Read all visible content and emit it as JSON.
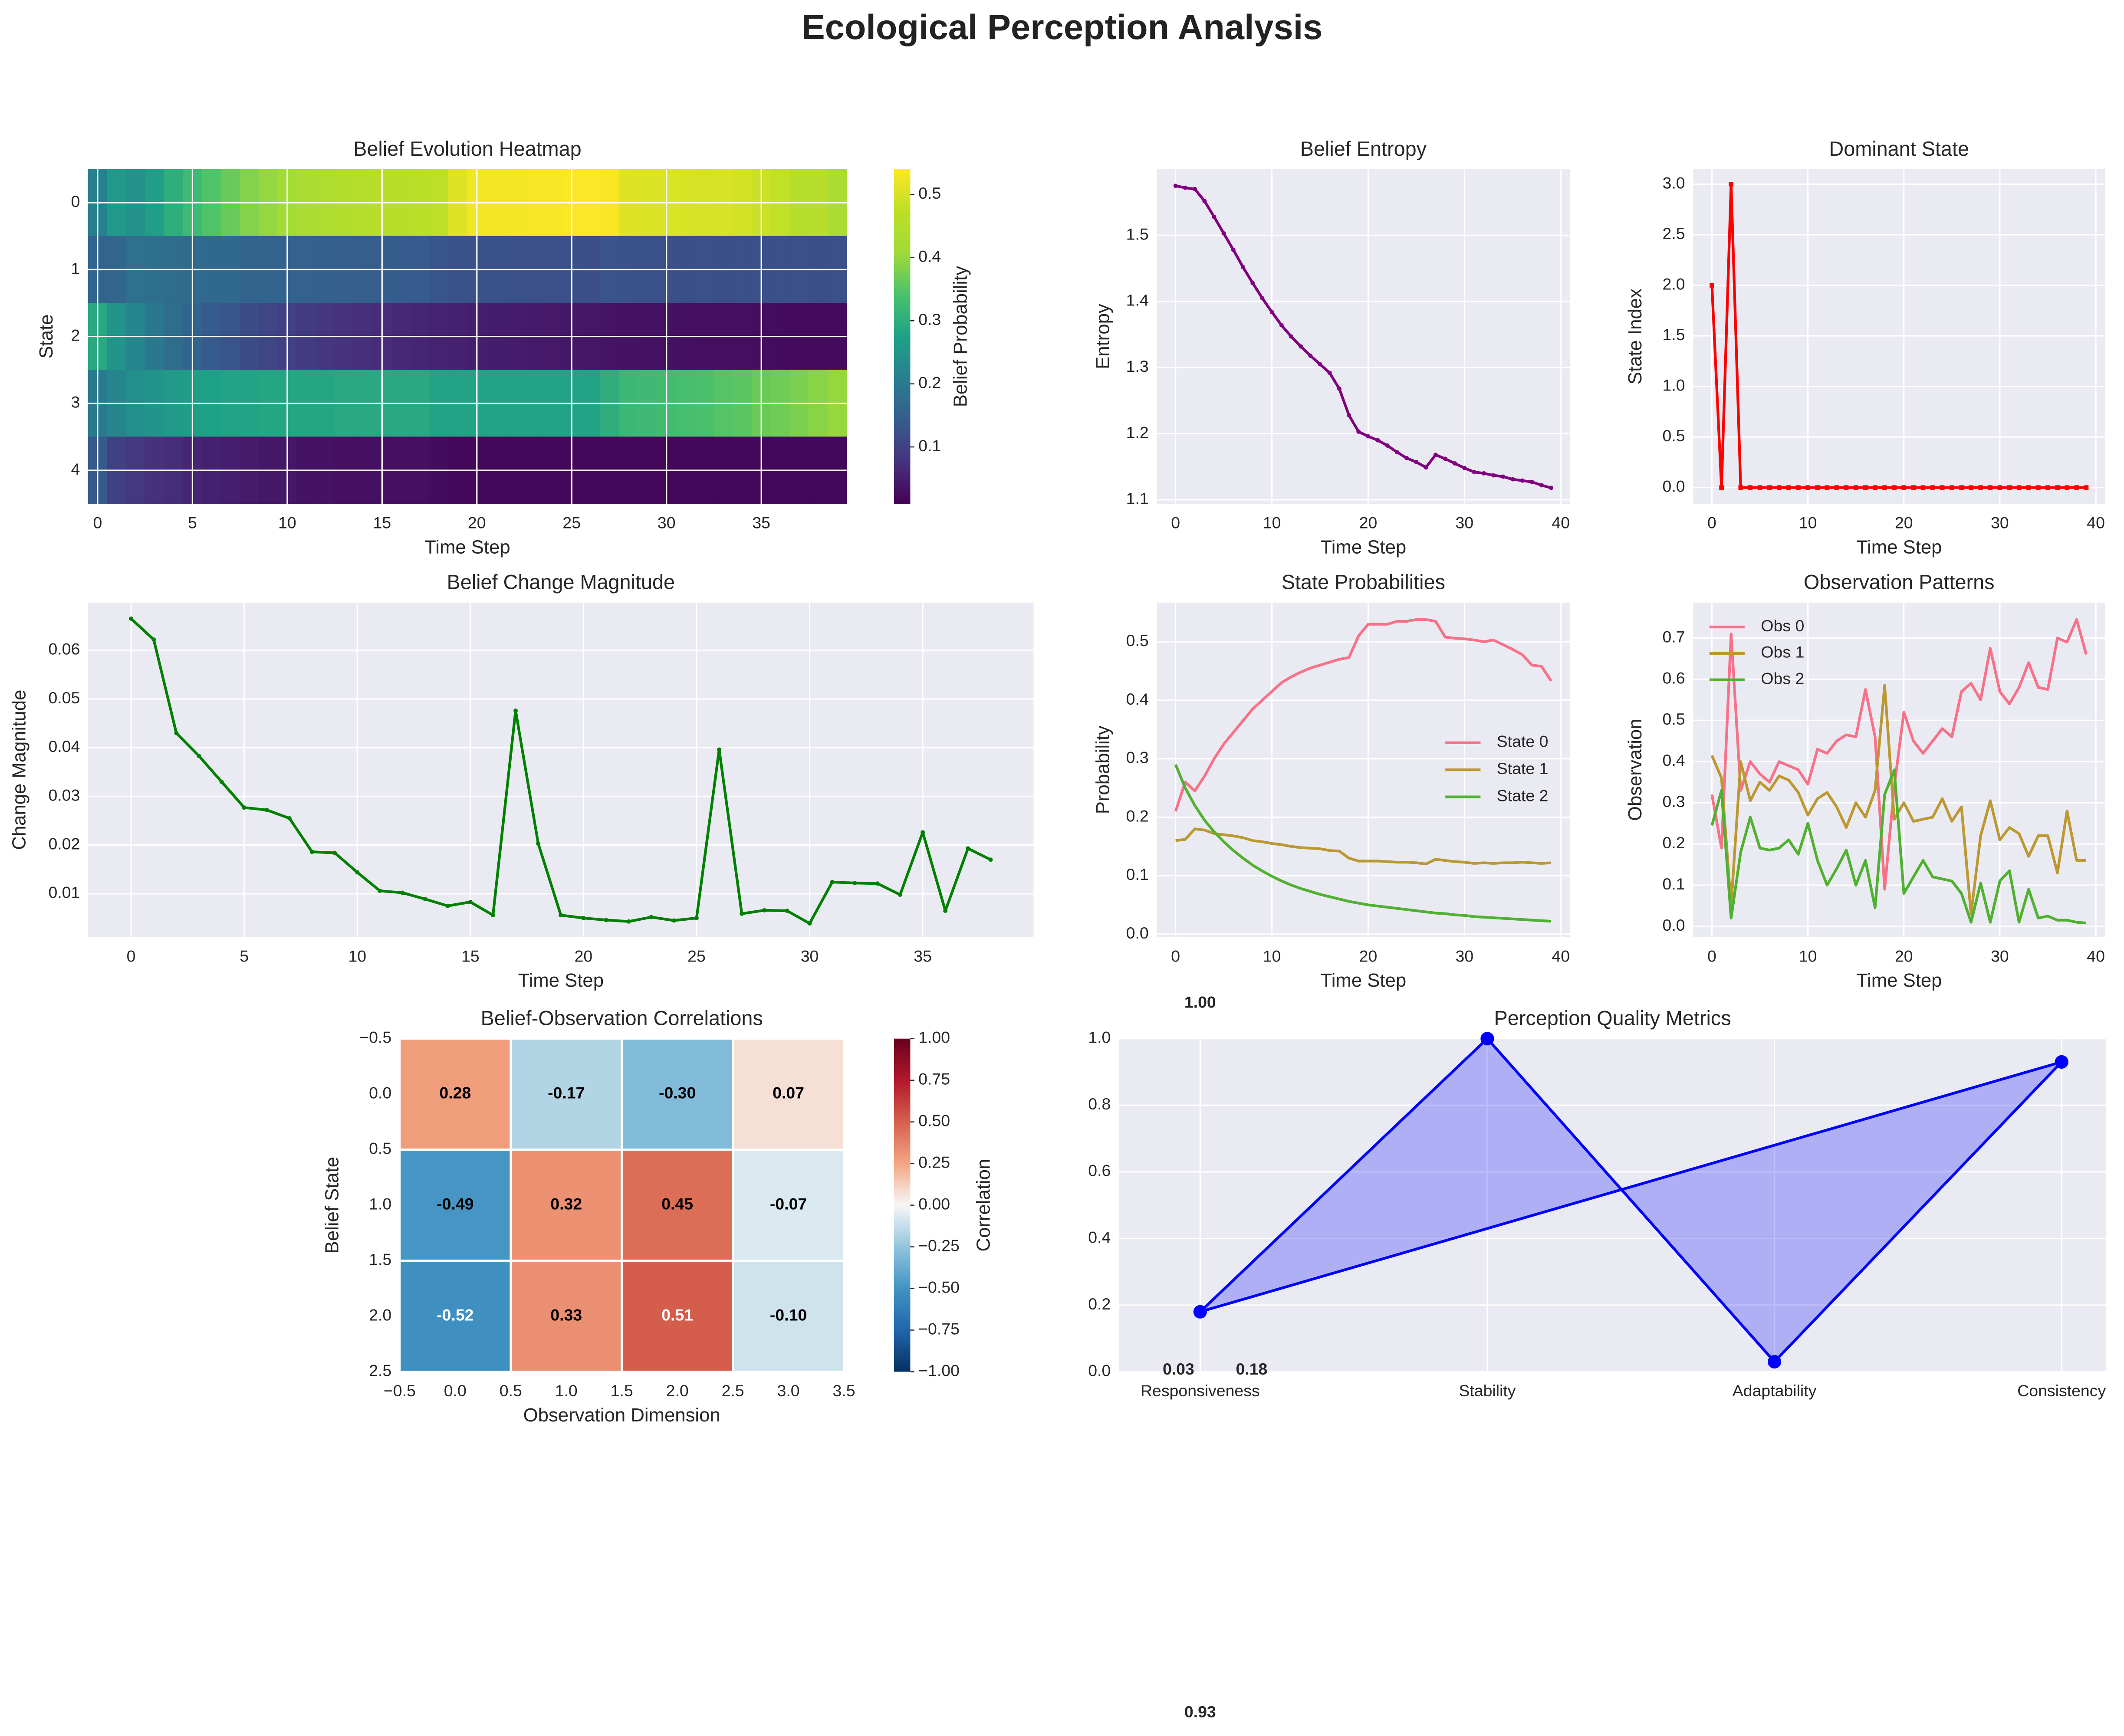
{
  "title": "Ecological Perception Analysis",
  "chart_data": [
    {
      "type": "heatmap",
      "title": "Belief Evolution Heatmap",
      "xlabel": "Time Step",
      "ylabel": "State",
      "colormap": "viridis",
      "clim": [
        0.01,
        0.54
      ],
      "cticks": [
        0.1,
        0.2,
        0.3,
        0.4,
        0.5
      ],
      "colorbar_label": "Belief Probability",
      "xlim": [
        -0.5,
        39.5
      ],
      "ylim": [
        4.5,
        -0.5
      ],
      "xticks": [
        0,
        5,
        10,
        15,
        20,
        25,
        30,
        35
      ],
      "yticks": [
        0,
        1,
        2,
        3,
        4
      ],
      "grid": true,
      "z": [
        [
          0.21,
          0.26,
          0.245,
          0.27,
          0.3,
          0.325,
          0.345,
          0.365,
          0.385,
          0.4,
          0.415,
          0.43,
          0.44,
          0.448,
          0.455,
          0.46,
          0.465,
          0.47,
          0.473,
          0.51,
          0.53,
          0.53,
          0.53,
          0.535,
          0.535,
          0.538,
          0.538,
          0.535,
          0.508,
          0.506,
          0.505,
          0.503,
          0.5,
          0.503,
          0.495,
          0.487,
          0.478,
          0.46,
          0.458,
          0.433
        ],
        [
          0.16,
          0.162,
          0.18,
          0.178,
          0.172,
          0.17,
          0.168,
          0.165,
          0.16,
          0.158,
          0.155,
          0.153,
          0.15,
          0.148,
          0.147,
          0.146,
          0.143,
          0.142,
          0.13,
          0.125,
          0.125,
          0.125,
          0.124,
          0.123,
          0.123,
          0.122,
          0.12,
          0.128,
          0.126,
          0.124,
          0.123,
          0.121,
          0.122,
          0.121,
          0.122,
          0.122,
          0.123,
          0.122,
          0.121,
          0.122
        ],
        [
          0.29,
          0.25,
          0.22,
          0.195,
          0.175,
          0.158,
          0.143,
          0.13,
          0.118,
          0.108,
          0.099,
          0.091,
          0.084,
          0.078,
          0.073,
          0.068,
          0.064,
          0.06,
          0.056,
          0.053,
          0.05,
          0.048,
          0.046,
          0.044,
          0.042,
          0.04,
          0.038,
          0.036,
          0.035,
          0.033,
          0.032,
          0.03,
          0.029,
          0.028,
          0.027,
          0.026,
          0.025,
          0.024,
          0.023,
          0.022
        ],
        [
          0.2,
          0.22,
          0.24,
          0.25,
          0.26,
          0.27,
          0.275,
          0.28,
          0.28,
          0.285,
          0.285,
          0.285,
          0.285,
          0.29,
          0.29,
          0.29,
          0.29,
          0.29,
          0.28,
          0.28,
          0.28,
          0.28,
          0.28,
          0.28,
          0.28,
          0.28,
          0.28,
          0.3,
          0.32,
          0.325,
          0.33,
          0.335,
          0.34,
          0.35,
          0.355,
          0.365,
          0.37,
          0.38,
          0.39,
          0.4
        ],
        [
          0.14,
          0.1,
          0.085,
          0.075,
          0.07,
          0.06,
          0.055,
          0.05,
          0.045,
          0.04,
          0.04,
          0.035,
          0.035,
          0.03,
          0.03,
          0.03,
          0.03,
          0.03,
          0.025,
          0.02,
          0.02,
          0.02,
          0.02,
          0.02,
          0.02,
          0.02,
          0.02,
          0.02,
          0.02,
          0.02,
          0.02,
          0.02,
          0.02,
          0.02,
          0.02,
          0.02,
          0.02,
          0.02,
          0.02,
          0.02
        ]
      ]
    },
    {
      "type": "line",
      "title": "Belief Entropy",
      "xlabel": "Time Step",
      "ylabel": "Entropy",
      "color": "#800080",
      "marker": "o",
      "grid": true,
      "xlim": [
        -1.95,
        40.95
      ],
      "ylim": [
        1.094,
        1.6
      ],
      "xticks": [
        0,
        10,
        20,
        30,
        40
      ],
      "yticks": [
        1.1,
        1.2,
        1.3,
        1.4,
        1.5
      ],
      "x": [
        0,
        1,
        2,
        3,
        4,
        5,
        6,
        7,
        8,
        9,
        10,
        11,
        12,
        13,
        14,
        15,
        16,
        17,
        18,
        19,
        20,
        21,
        22,
        23,
        24,
        25,
        26,
        27,
        28,
        29,
        30,
        31,
        32,
        33,
        34,
        35,
        36,
        37,
        38,
        39
      ],
      "values": [
        1.575,
        1.572,
        1.57,
        1.552,
        1.528,
        1.503,
        1.478,
        1.452,
        1.428,
        1.405,
        1.384,
        1.364,
        1.347,
        1.332,
        1.318,
        1.305,
        1.292,
        1.268,
        1.228,
        1.203,
        1.196,
        1.19,
        1.182,
        1.172,
        1.163,
        1.157,
        1.149,
        1.168,
        1.162,
        1.155,
        1.148,
        1.142,
        1.14,
        1.137,
        1.135,
        1.131,
        1.129,
        1.127,
        1.122,
        1.118
      ]
    },
    {
      "type": "line",
      "title": "Dominant State",
      "xlabel": "Time Step",
      "ylabel": "State Index",
      "color": "#ff0000",
      "marker": "s",
      "grid": true,
      "xlim": [
        -1.95,
        40.95
      ],
      "ylim": [
        -0.16,
        3.147
      ],
      "xticks": [
        0,
        10,
        20,
        30,
        40
      ],
      "yticks": [
        {
          "value": 0,
          "label": "0.0"
        },
        0.5,
        {
          "value": 1,
          "label": "1.0"
        },
        1.5,
        {
          "value": 2,
          "label": "2.0"
        },
        2.5,
        {
          "value": 3,
          "label": "3.0"
        }
      ],
      "x": [
        0,
        1,
        2,
        3,
        4,
        5,
        6,
        7,
        8,
        9,
        10,
        11,
        12,
        13,
        14,
        15,
        16,
        17,
        18,
        19,
        20,
        21,
        22,
        23,
        24,
        25,
        26,
        27,
        28,
        29,
        30,
        31,
        32,
        33,
        34,
        35,
        36,
        37,
        38,
        39
      ],
      "values": [
        2,
        0,
        3,
        0,
        0,
        0,
        0,
        0,
        0,
        0,
        0,
        0,
        0,
        0,
        0,
        0,
        0,
        0,
        0,
        0,
        0,
        0,
        0,
        0,
        0,
        0,
        0,
        0,
        0,
        0,
        0,
        0,
        0,
        0,
        0,
        0,
        0,
        0,
        0,
        0
      ]
    },
    {
      "type": "line",
      "title": "Belief Change Magnitude",
      "xlabel": "Time Step",
      "ylabel": "Change Magnitude",
      "color": "#008000",
      "marker": "o",
      "grid": true,
      "xlim": [
        -1.9,
        39.9
      ],
      "ylim": [
        0.0011,
        0.0698
      ],
      "xticks": [
        0,
        5,
        10,
        15,
        20,
        25,
        30,
        35
      ],
      "yticks": [
        0.01,
        0.02,
        0.03,
        0.04,
        0.05,
        0.06
      ],
      "x": [
        0,
        1,
        2,
        3,
        4,
        5,
        6,
        7,
        8,
        9,
        10,
        11,
        12,
        13,
        14,
        15,
        16,
        17,
        18,
        19,
        20,
        21,
        22,
        23,
        24,
        25,
        26,
        27,
        28,
        29,
        30,
        31,
        32,
        33,
        34,
        35,
        36,
        37,
        38
      ],
      "values": [
        0.0665,
        0.0622,
        0.043,
        0.0383,
        0.033,
        0.0277,
        0.0272,
        0.0255,
        0.0186,
        0.0184,
        0.0144,
        0.0106,
        0.0102,
        0.0089,
        0.0075,
        0.0083,
        0.0056,
        0.0476,
        0.0203,
        0.0056,
        0.005,
        0.0046,
        0.0043,
        0.0052,
        0.0045,
        0.005,
        0.0396,
        0.0059,
        0.0066,
        0.0065,
        0.0039,
        0.0124,
        0.0122,
        0.0121,
        0.0098,
        0.0226,
        0.0065,
        0.0193,
        0.017
      ]
    },
    {
      "type": "line",
      "title": "State Probabilities",
      "xlabel": "Time Step",
      "ylabel": "Probability",
      "grid": true,
      "legend": "center right",
      "xlim": [
        -1.95,
        40.95
      ],
      "ylim": [
        -0.005,
        0.567
      ],
      "xticks": [
        0,
        10,
        20,
        30,
        40
      ],
      "yticks": [
        {
          "value": 0,
          "label": "0.0"
        },
        0.1,
        0.2,
        0.3,
        0.4,
        0.5
      ],
      "x": [
        0,
        1,
        2,
        3,
        4,
        5,
        6,
        7,
        8,
        9,
        10,
        11,
        12,
        13,
        14,
        15,
        16,
        17,
        18,
        19,
        20,
        21,
        22,
        23,
        24,
        25,
        26,
        27,
        28,
        29,
        30,
        31,
        32,
        33,
        34,
        35,
        36,
        37,
        38,
        39
      ],
      "series": [
        {
          "name": "State 0",
          "color": "#f77189",
          "values": [
            0.21,
            0.26,
            0.245,
            0.27,
            0.3,
            0.325,
            0.345,
            0.365,
            0.385,
            0.4,
            0.415,
            0.43,
            0.44,
            0.448,
            0.455,
            0.46,
            0.465,
            0.47,
            0.473,
            0.51,
            0.53,
            0.53,
            0.53,
            0.535,
            0.535,
            0.538,
            0.538,
            0.535,
            0.508,
            0.506,
            0.505,
            0.503,
            0.5,
            0.503,
            0.495,
            0.487,
            0.478,
            0.46,
            0.458,
            0.433
          ]
        },
        {
          "name": "State 1",
          "color": "#bb9832",
          "values": [
            0.16,
            0.162,
            0.18,
            0.178,
            0.172,
            0.17,
            0.168,
            0.165,
            0.16,
            0.158,
            0.155,
            0.153,
            0.15,
            0.148,
            0.147,
            0.146,
            0.143,
            0.142,
            0.13,
            0.125,
            0.125,
            0.125,
            0.124,
            0.123,
            0.123,
            0.122,
            0.12,
            0.128,
            0.126,
            0.124,
            0.123,
            0.121,
            0.122,
            0.121,
            0.122,
            0.122,
            0.123,
            0.122,
            0.121,
            0.122
          ]
        },
        {
          "name": "State 2",
          "color": "#50b131",
          "values": [
            0.29,
            0.25,
            0.22,
            0.195,
            0.175,
            0.158,
            0.143,
            0.13,
            0.118,
            0.108,
            0.099,
            0.091,
            0.084,
            0.078,
            0.073,
            0.068,
            0.064,
            0.06,
            0.056,
            0.053,
            0.05,
            0.048,
            0.046,
            0.044,
            0.042,
            0.04,
            0.038,
            0.036,
            0.035,
            0.033,
            0.032,
            0.03,
            0.029,
            0.028,
            0.027,
            0.026,
            0.025,
            0.024,
            0.023,
            0.022
          ]
        }
      ]
    },
    {
      "type": "line",
      "title": "Observation Patterns",
      "xlabel": "Time Step",
      "ylabel": "Observation",
      "grid": true,
      "legend": "upper left",
      "xlim": [
        -1.95,
        40.95
      ],
      "ylim": [
        -0.026,
        0.786
      ],
      "xticks": [
        0,
        10,
        20,
        30,
        40
      ],
      "yticks": [
        {
          "value": 0,
          "label": "0.0"
        },
        0.1,
        0.2,
        0.3,
        0.4,
        0.5,
        0.6,
        0.7
      ],
      "x": [
        0,
        1,
        2,
        3,
        4,
        5,
        6,
        7,
        8,
        9,
        10,
        11,
        12,
        13,
        14,
        15,
        16,
        17,
        18,
        19,
        20,
        21,
        22,
        23,
        24,
        25,
        26,
        27,
        28,
        29,
        30,
        31,
        32,
        33,
        34,
        35,
        36,
        37,
        38,
        39
      ],
      "series": [
        {
          "name": "Obs 0",
          "color": "#f77189",
          "values": [
            0.32,
            0.19,
            0.71,
            0.33,
            0.4,
            0.37,
            0.35,
            0.4,
            0.39,
            0.38,
            0.345,
            0.43,
            0.42,
            0.45,
            0.465,
            0.46,
            0.575,
            0.46,
            0.09,
            0.34,
            0.52,
            0.45,
            0.42,
            0.45,
            0.48,
            0.46,
            0.57,
            0.59,
            0.55,
            0.675,
            0.57,
            0.54,
            0.58,
            0.64,
            0.58,
            0.575,
            0.7,
            0.69,
            0.745,
            0.66
          ]
        },
        {
          "name": "Obs 1",
          "color": "#bb9832",
          "values": [
            0.415,
            0.36,
            0.05,
            0.4,
            0.305,
            0.35,
            0.33,
            0.365,
            0.355,
            0.325,
            0.27,
            0.31,
            0.325,
            0.29,
            0.24,
            0.3,
            0.265,
            0.33,
            0.585,
            0.26,
            0.3,
            0.255,
            0.26,
            0.265,
            0.31,
            0.255,
            0.29,
            0.03,
            0.22,
            0.305,
            0.21,
            0.24,
            0.225,
            0.17,
            0.22,
            0.22,
            0.13,
            0.28,
            0.16,
            0.16
          ]
        },
        {
          "name": "Obs 2",
          "color": "#50b131",
          "values": [
            0.245,
            0.33,
            0.02,
            0.18,
            0.265,
            0.19,
            0.185,
            0.19,
            0.21,
            0.175,
            0.25,
            0.16,
            0.1,
            0.14,
            0.185,
            0.1,
            0.16,
            0.045,
            0.32,
            0.38,
            0.08,
            0.12,
            0.16,
            0.12,
            0.115,
            0.11,
            0.08,
            0.01,
            0.105,
            0.01,
            0.11,
            0.135,
            0.01,
            0.09,
            0.02,
            0.025,
            0.015,
            0.015,
            0.01,
            0.008
          ]
        }
      ]
    },
    {
      "type": "heatmap",
      "title": "Belief-Observation Correlations",
      "xlabel": "Observation Dimension",
      "ylabel": "Belief State",
      "colormap": "RdBu_r",
      "clim": [
        -1,
        1
      ],
      "colorbar_label": "Correlation",
      "grid": false,
      "cticks": [
        {
          "value": -1,
          "label": "−1.00"
        },
        {
          "value": -0.75,
          "label": "−0.75"
        },
        {
          "value": -0.5,
          "label": "−0.50"
        },
        {
          "value": -0.25,
          "label": "−0.25"
        },
        {
          "value": 0,
          "label": "0.00"
        },
        {
          "value": 0.25,
          "label": "0.25"
        },
        {
          "value": 0.5,
          "label": "0.50"
        },
        {
          "value": 0.75,
          "label": "0.75"
        },
        {
          "value": 1,
          "label": "1.00"
        }
      ],
      "xlim": [
        -0.5,
        3.5
      ],
      "ylim": [
        2.5,
        -0.5
      ],
      "xticks": [
        {
          "value": -0.5,
          "label": "−0.5"
        },
        {
          "value": 0,
          "label": "0.0"
        },
        0.5,
        {
          "value": 1,
          "label": "1.0"
        },
        1.5,
        {
          "value": 2,
          "label": "2.0"
        },
        2.5,
        {
          "value": 3,
          "label": "3.0"
        },
        3.5
      ],
      "yticks": [
        {
          "value": -0.5,
          "label": "−0.5"
        },
        {
          "value": 0,
          "label": "0.0"
        },
        0.5,
        {
          "value": 1,
          "label": "1.0"
        },
        1.5,
        {
          "value": 2,
          "label": "2.0"
        },
        2.5
      ],
      "z": [
        [
          0.28,
          -0.17,
          -0.3,
          0.07
        ],
        [
          -0.49,
          0.32,
          0.45,
          -0.07
        ],
        [
          -0.52,
          0.33,
          0.51,
          -0.1
        ]
      ],
      "value_labels": [
        [
          "0.28",
          "-0.17",
          "-0.30",
          "0.07"
        ],
        [
          "-0.49",
          "0.32",
          "0.45",
          "-0.07"
        ],
        [
          "-0.52",
          "0.33",
          "0.51",
          "-0.10"
        ]
      ]
    },
    {
      "type": "radar",
      "title": "Perception Quality Metrics",
      "color": "#0000ff",
      "grid": true,
      "categories": [
        "Responsiveness",
        "Stability",
        "Adaptability",
        "Consistency"
      ],
      "values": [
        0.18,
        1.0,
        0.03,
        0.93
      ],
      "value_labels": [
        "0.18",
        "1.00",
        "0.03",
        "0.93"
      ],
      "ylim": [
        0,
        1
      ],
      "yticks": [
        {
          "value": 0,
          "label": "0.0"
        },
        0.2,
        0.4,
        0.6,
        0.8,
        {
          "value": 1,
          "label": "1.0"
        }
      ]
    }
  ]
}
